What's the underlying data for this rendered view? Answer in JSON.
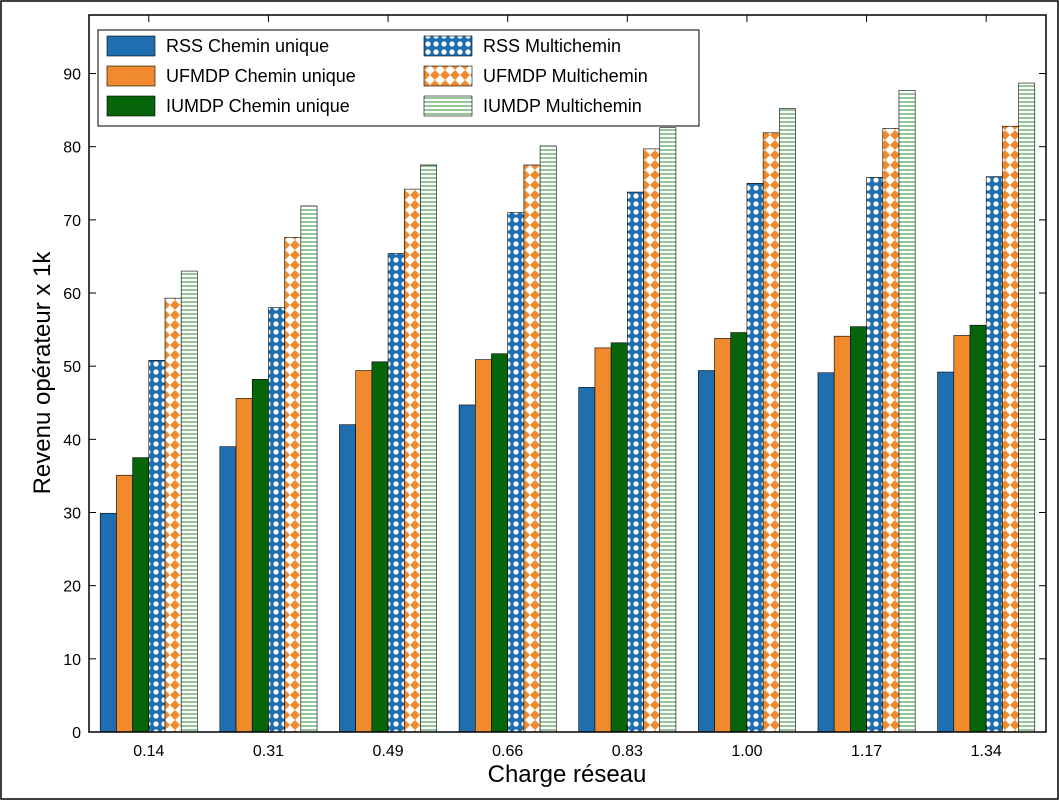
{
  "chart_data": {
    "type": "bar",
    "title": "",
    "xlabel": "Charge réseau",
    "ylabel": "Revenu opérateur x 1k",
    "ylim": [
      0,
      98
    ],
    "yticks": [
      0,
      10,
      20,
      30,
      40,
      50,
      60,
      70,
      80,
      90
    ],
    "categories": [
      "0.14",
      "0.31",
      "0.49",
      "0.66",
      "0.83",
      "1.00",
      "1.17",
      "1.34"
    ],
    "legend_position": "top-left",
    "grid": false,
    "series": [
      {
        "name": "RSS Chemin unique",
        "color": "#1f6fb0",
        "pattern": "solid",
        "values": [
          29.9,
          39.0,
          42.0,
          44.7,
          47.1,
          49.4,
          49.1,
          49.2
        ]
      },
      {
        "name": "UFMDP Chemin unique",
        "color": "#f08a2c",
        "pattern": "solid",
        "values": [
          35.1,
          45.6,
          49.4,
          50.9,
          52.5,
          53.8,
          54.1,
          54.2
        ]
      },
      {
        "name": "IUMDP Chemin unique",
        "color": "#06640a",
        "pattern": "solid",
        "values": [
          37.5,
          48.2,
          50.6,
          51.7,
          53.2,
          54.6,
          55.4,
          55.6
        ]
      },
      {
        "name": "RSS Multichemin",
        "color": "#1f6fb0",
        "pattern": "circles",
        "values": [
          50.8,
          58.0,
          65.4,
          71.0,
          73.8,
          75.0,
          75.8,
          75.9
        ]
      },
      {
        "name": "UFMDP Multichemin",
        "color": "#f08a2c",
        "pattern": "diamonds",
        "values": [
          59.3,
          67.6,
          74.2,
          77.5,
          79.7,
          81.9,
          82.5,
          82.8
        ]
      },
      {
        "name": "IUMDP Multichemin",
        "color": "#2e8b2e",
        "pattern": "hlines",
        "values": [
          63.0,
          71.9,
          77.5,
          80.1,
          82.6,
          85.2,
          87.7,
          88.7
        ]
      }
    ]
  }
}
